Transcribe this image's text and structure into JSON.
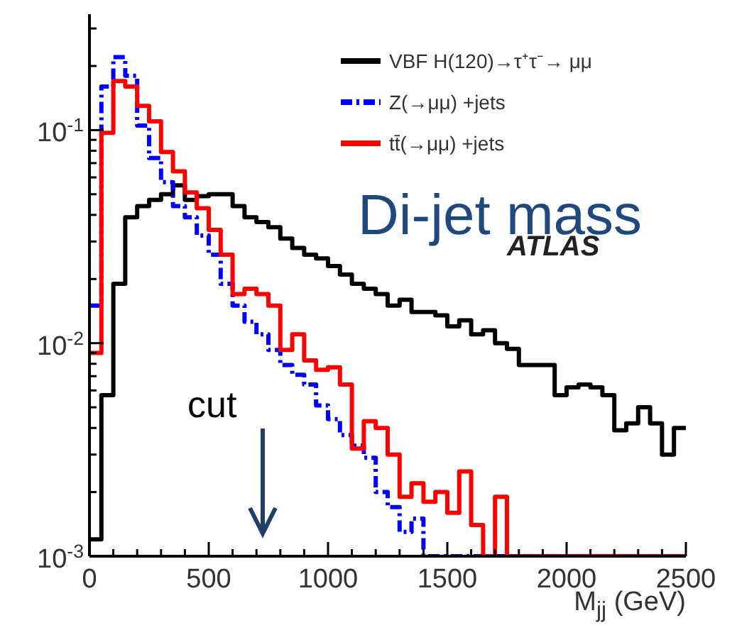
{
  "chart_data": {
    "type": "histogram",
    "xlabel": "M$_{jj}$ (GeV)",
    "log": "y",
    "legend": "top right",
    "line_style": "solid",
    "bins": [
      0,
      50,
      100,
      150,
      200,
      250,
      300,
      350,
      400,
      450,
      500,
      550,
      600,
      650,
      700,
      750,
      800,
      850,
      900,
      950,
      1000,
      1050,
      1100,
      1150,
      1200,
      1250,
      1300,
      1350,
      1400,
      1450,
      1500,
      1550,
      1600,
      1650,
      1700,
      1750,
      1800,
      1850,
      1900,
      1950,
      2000,
      2050,
      2100,
      2150,
      2200,
      2250,
      2300,
      2350,
      2400,
      2450,
      2500
    ],
    "xlim": [
      0,
      2500
    ],
    "ylim": [
      0.001,
      0.35
    ],
    "xticks": [
      0,
      {
        "value": 100,
        "label": null
      },
      {
        "value": 200,
        "label": null
      },
      {
        "value": 300,
        "label": null
      },
      {
        "value": 400,
        "label": null
      },
      500,
      {
        "value": 600,
        "label": null
      },
      {
        "value": 700,
        "label": null
      },
      {
        "value": 800,
        "label": null
      },
      {
        "value": 900,
        "label": null
      },
      1000,
      {
        "value": 1100,
        "label": null
      },
      {
        "value": 1200,
        "label": null
      },
      {
        "value": 1300,
        "label": null
      },
      {
        "value": 1400,
        "label": null
      },
      1500,
      {
        "value": 1600,
        "label": null
      },
      {
        "value": 1700,
        "label": null
      },
      {
        "value": 1800,
        "label": null
      },
      {
        "value": 1900,
        "label": null
      },
      2000,
      {
        "value": 2100,
        "label": null
      },
      {
        "value": 2200,
        "label": null
      },
      {
        "value": 2300,
        "label": null
      },
      {
        "value": 2400,
        "label": null
      },
      2500
    ],
    "yticks": [
      {
        "value": 0.001,
        "label": "10$^{-3}$"
      },
      {
        "value": 0.002,
        "label": null
      },
      {
        "value": 0.003,
        "label": null
      },
      {
        "value": 0.004,
        "label": null
      },
      {
        "value": 0.005,
        "label": null
      },
      {
        "value": 0.006,
        "label": null
      },
      {
        "value": 0.007,
        "label": null
      },
      {
        "value": 0.008,
        "label": null
      },
      {
        "value": 0.009,
        "label": null
      },
      {
        "value": 0.01,
        "label": "10$^{-2}$"
      },
      {
        "value": 0.02,
        "label": null
      },
      {
        "value": 0.03,
        "label": null
      },
      {
        "value": 0.04,
        "label": null
      },
      {
        "value": 0.05,
        "label": null
      },
      {
        "value": 0.06,
        "label": null
      },
      {
        "value": 0.07,
        "label": null
      },
      {
        "value": 0.08,
        "label": null
      },
      {
        "value": 0.09,
        "label": null
      },
      {
        "value": 0.1,
        "label": "10$^{-1}$"
      },
      {
        "value": 0.2,
        "label": null
      },
      {
        "value": 0.3,
        "label": null
      }
    ],
    "series": [
      {
        "name": "VBF H(120)→τ⁺τ⁻→ μμ",
        "color": "#000000",
        "values": [
          0.0012,
          0.0057,
          0.019,
          0.039,
          0.044,
          0.047,
          0.05,
          0.055,
          0.047,
          0.049,
          0.05,
          0.05,
          0.044,
          0.039,
          0.037,
          0.035,
          0.031,
          0.028,
          0.026,
          0.025,
          0.023,
          0.021,
          0.019,
          0.018,
          0.017,
          0.015,
          0.016,
          0.014,
          0.014,
          0.0135,
          0.012,
          0.0128,
          0.011,
          0.0115,
          0.01,
          0.0094,
          0.0079,
          0.0079,
          0.0079,
          0.0057,
          0.0062,
          0.0064,
          0.0062,
          0.0057,
          0.0039,
          0.0042,
          0.005,
          0.0042,
          0.003,
          0.004
        ]
      },
      {
        "name": "Z(→μμ) +jets",
        "color": "#0000ff",
        "line_style": "dashed",
        "values": [
          0.015,
          0.16,
          0.22,
          0.18,
          0.105,
          0.074,
          0.057,
          0.044,
          0.039,
          0.032,
          0.026,
          0.019,
          0.015,
          0.0126,
          0.011,
          0.0093,
          0.0079,
          0.0071,
          0.0064,
          0.0051,
          0.0044,
          0.0037,
          0.0033,
          0.0029,
          0.002,
          0.0017,
          0.0013,
          0.0015,
          0.001,
          0.001,
          0.001,
          0.001,
          0.001,
          0.001,
          0.001,
          0.001,
          0.001,
          0.001,
          0.001,
          0.001,
          0.001,
          0.001,
          0.001,
          0.001,
          0.001,
          0.001,
          0.001,
          0.001,
          0.001,
          0.001
        ]
      },
      {
        "name": "tt̄(→μμ) +jets",
        "color": "#ff0000",
        "values": [
          0.009,
          0.097,
          0.17,
          0.16,
          0.13,
          0.11,
          0.079,
          0.064,
          0.051,
          0.043,
          0.034,
          0.026,
          0.017,
          0.018,
          0.017,
          0.015,
          0.0093,
          0.011,
          0.0083,
          0.0075,
          0.0077,
          0.0064,
          0.0032,
          0.0043,
          0.004,
          0.003,
          0.0019,
          0.0022,
          0.0018,
          0.002,
          0.0016,
          0.0025,
          0.0014,
          0.001,
          0.0019,
          0.001,
          0.001,
          0.001,
          0.001,
          0.001,
          0.001,
          0.001,
          0.001,
          0.001,
          0.001,
          0.001,
          0.001,
          0.001,
          0.001,
          0.001
        ]
      }
    ],
    "annotations": [
      "Di-jet mass",
      "ATLAS",
      "cut"
    ]
  }
}
